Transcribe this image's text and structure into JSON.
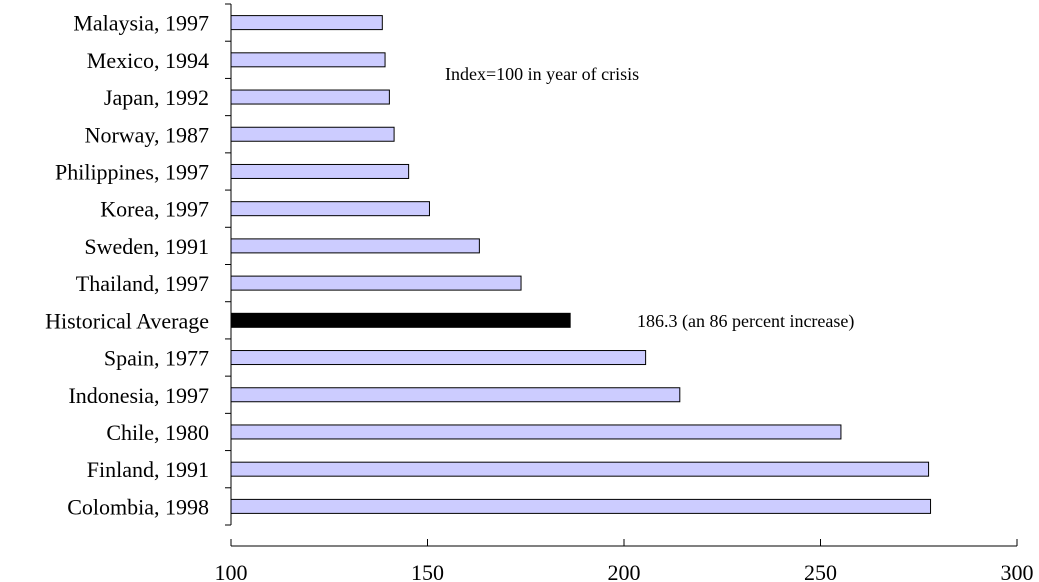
{
  "chart_data": {
    "type": "bar",
    "orientation": "horizontal",
    "categories": [
      "Malaysia, 1997",
      "Mexico, 1994",
      "Japan, 1992",
      "Norway, 1987",
      "Philippines, 1997",
      "Korea, 1997",
      "Sweden, 1991",
      "Thailand, 1997",
      "Historical Average",
      "Spain, 1977",
      "Indonesia, 1997",
      "Chile, 1980",
      "Finland, 1991",
      "Colombia, 1998"
    ],
    "values": [
      138.5,
      139.2,
      140.3,
      141.5,
      145.2,
      150.5,
      163.2,
      173.8,
      186.3,
      205.5,
      214.2,
      255.2,
      277.5,
      278.0
    ],
    "highlight_category": "Historical Average",
    "xlim": [
      100,
      300
    ],
    "xticks": [
      "100",
      "150",
      "200",
      "250",
      "300"
    ],
    "bar_color": "#ccccff",
    "highlight_color": "#000000",
    "edge_color": "#000000",
    "annotations": [
      {
        "text": "Index=100 in year of crisis",
        "anchor_category": "Mexico, 1994"
      },
      {
        "text": "186.3 (an 86 percent increase)",
        "anchor_category": "Historical Average"
      }
    ],
    "title": "",
    "xlabel": "",
    "ylabel": "",
    "grid": false
  }
}
